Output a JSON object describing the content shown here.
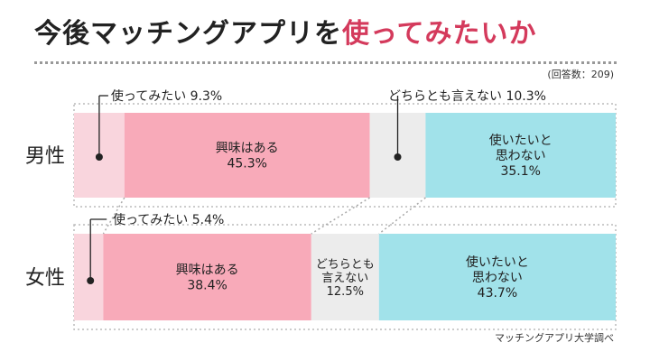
{
  "header": {
    "title_main": "今後マッチングアプリを",
    "title_highlight": "使ってみたいか",
    "sample_note": "(回答数：209)"
  },
  "footer": {
    "source": "マッチングアプリ大学調べ"
  },
  "colors": {
    "try": "#f9d5dd",
    "interested": "#f8aab9",
    "neutral": "#ececec",
    "not_want": "#a1e2ea",
    "highlight": "#d43a5c"
  },
  "chart_data": {
    "type": "bar",
    "stacked": true,
    "horizontal": true,
    "categories": [
      "男性",
      "女性"
    ],
    "x_range": [
      0,
      100
    ],
    "series": [
      {
        "name_lines": [
          "使ってみたい"
        ],
        "color_key": "try",
        "values": [
          9.3,
          5.4
        ],
        "labels": [
          "9.3%",
          "5.4%"
        ]
      },
      {
        "name_lines": [
          "興味はある"
        ],
        "color_key": "interested",
        "values": [
          45.3,
          38.4
        ],
        "labels": [
          "45.3%",
          "38.4%"
        ]
      },
      {
        "name_lines": [
          "どちらとも言えない"
        ],
        "color_key": "neutral",
        "values": [
          10.3,
          12.5
        ],
        "labels": [
          "10.3%",
          "12.5%"
        ]
      },
      {
        "name_lines": [
          "使いたいと",
          "思わない"
        ],
        "color_key": "not_want",
        "values": [
          35.1,
          43.7
        ],
        "labels": [
          "35.1%",
          "43.7%"
        ]
      }
    ],
    "female_neutral_lines": [
      "どちらとも",
      "言えない"
    ]
  }
}
